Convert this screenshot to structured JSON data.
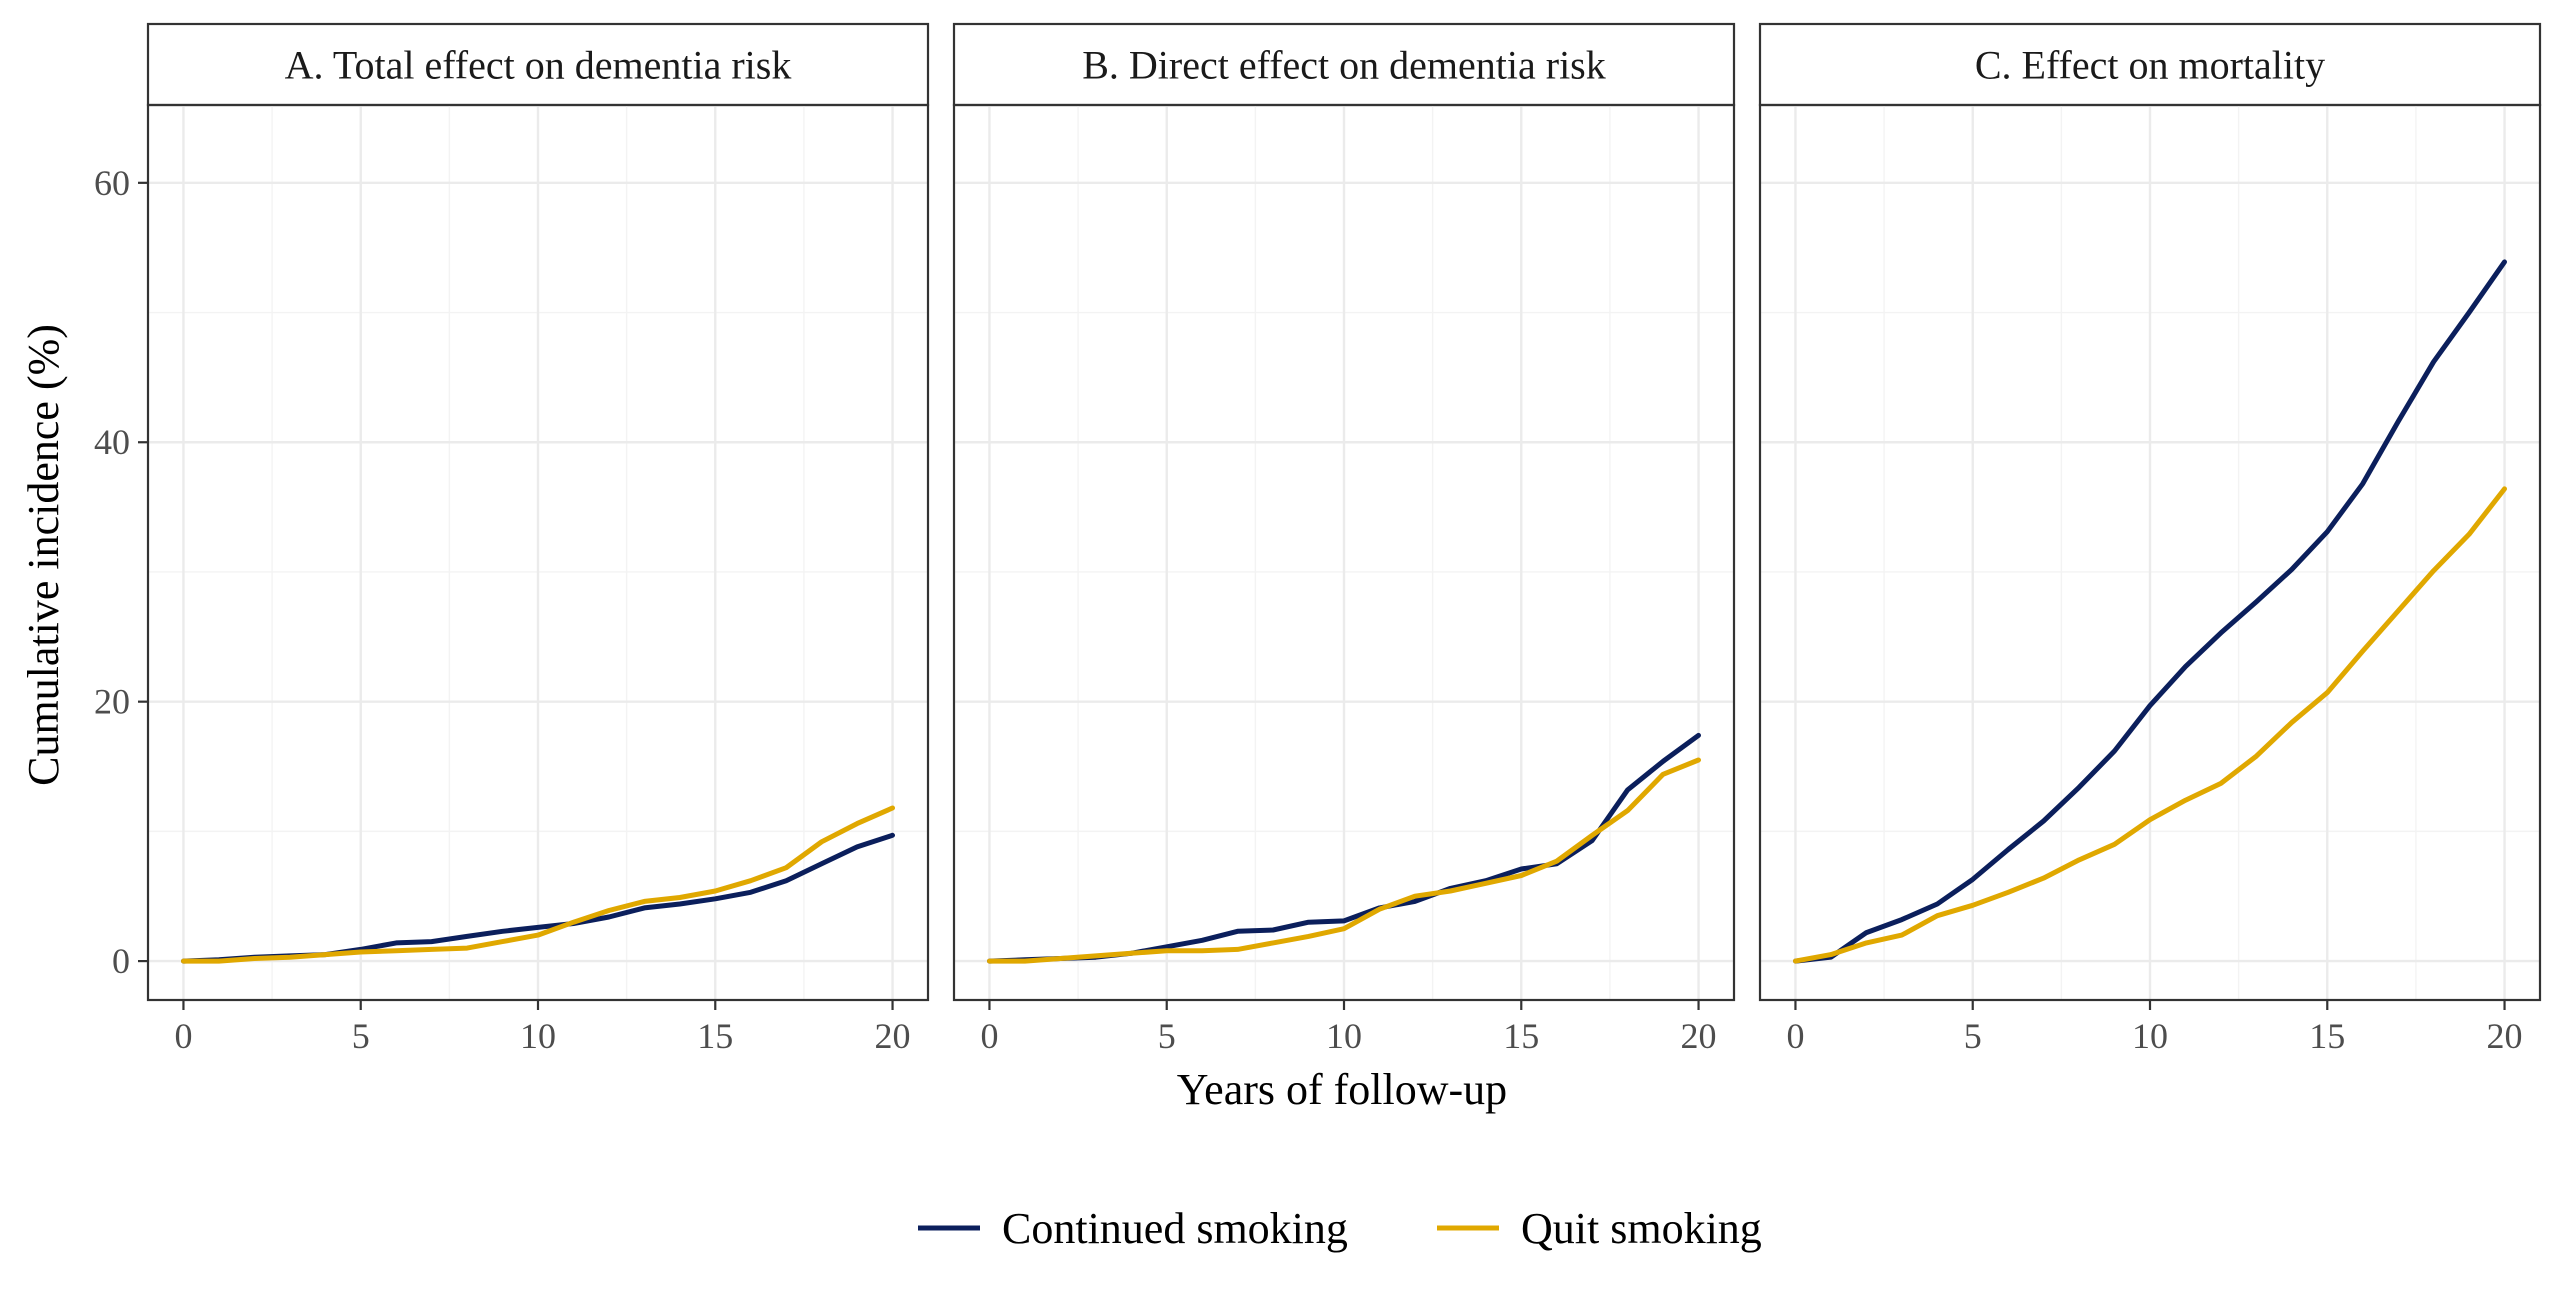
{
  "chart_data": {
    "type": "line",
    "xlabel": "Years of follow-up",
    "ylabel": "Cumulative incidence (%)",
    "xlim": [
      -1,
      21
    ],
    "ylim": [
      -3,
      66
    ],
    "x_ticks": [
      0,
      5,
      10,
      15,
      20
    ],
    "y_ticks": [
      0,
      20,
      40,
      60
    ],
    "grid": true,
    "legend_position": "bottom",
    "series_colors": {
      "continued": "#0b1f5c",
      "quit": "#e0a800"
    },
    "legend": [
      {
        "key": "continued",
        "label": "Continued smoking",
        "color": "#0b1f5c"
      },
      {
        "key": "quit",
        "label": "Quit smoking",
        "color": "#e0a800"
      }
    ],
    "x": [
      0,
      1,
      2,
      3,
      4,
      5,
      6,
      7,
      8,
      9,
      10,
      11,
      12,
      13,
      14,
      15,
      16,
      17,
      18,
      19,
      20
    ],
    "panels": [
      {
        "title": "A. Total effect on dementia risk",
        "series": [
          {
            "key": "continued",
            "name": "Continued smoking",
            "values": [
              0,
              0.1,
              0.3,
              0.4,
              0.5,
              0.9,
              1.4,
              1.5,
              1.9,
              2.3,
              2.6,
              2.9,
              3.4,
              4.1,
              4.4,
              4.8,
              5.3,
              6.2,
              7.5,
              8.8,
              9.7
            ]
          },
          {
            "key": "quit",
            "name": "Quit smoking",
            "values": [
              0,
              0,
              0.2,
              0.3,
              0.5,
              0.7,
              0.8,
              0.9,
              1.0,
              1.5,
              2.0,
              3.0,
              3.9,
              4.6,
              4.9,
              5.4,
              6.2,
              7.2,
              9.2,
              10.6,
              11.8
            ]
          }
        ]
      },
      {
        "title": "B. Direct effect on dementia risk",
        "series": [
          {
            "key": "continued",
            "name": "Continued smoking",
            "values": [
              0,
              0.1,
              0.2,
              0.3,
              0.6,
              1.1,
              1.6,
              2.3,
              2.4,
              3.0,
              3.1,
              4.1,
              4.6,
              5.6,
              6.2,
              7.1,
              7.5,
              9.3,
              13.2,
              15.4,
              17.4
            ]
          },
          {
            "key": "quit",
            "name": "Quit smoking",
            "values": [
              0,
              0,
              0.2,
              0.4,
              0.6,
              0.8,
              0.8,
              0.9,
              1.4,
              1.9,
              2.5,
              4.0,
              5.0,
              5.4,
              6.0,
              6.6,
              7.7,
              9.7,
              11.6,
              14.4,
              15.5
            ]
          }
        ]
      },
      {
        "title": "C. Effect on mortality",
        "series": [
          {
            "key": "continued",
            "name": "Continued smoking",
            "values": [
              0,
              0.3,
              2.2,
              3.2,
              4.4,
              6.3,
              8.6,
              10.8,
              13.4,
              16.2,
              19.7,
              22.7,
              25.3,
              27.7,
              30.2,
              33.1,
              36.8,
              41.6,
              46.2,
              50.0,
              53.9
            ]
          },
          {
            "key": "quit",
            "name": "Quit smoking",
            "values": [
              0,
              0.5,
              1.4,
              2.0,
              3.5,
              4.3,
              5.3,
              6.4,
              7.8,
              9.0,
              10.9,
              12.4,
              13.7,
              15.8,
              18.4,
              20.7,
              23.9,
              27.0,
              30.1,
              32.9,
              36.4
            ]
          }
        ]
      }
    ]
  }
}
